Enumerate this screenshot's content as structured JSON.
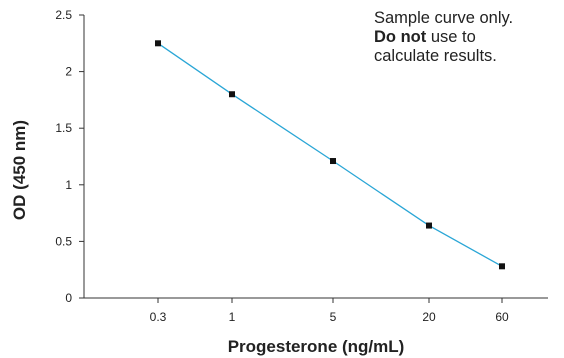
{
  "chart_data": {
    "type": "line",
    "title": "",
    "xlabel": "Progesterone (ng/mL)",
    "ylabel": "OD (450 nm)",
    "x_tick_labels": [
      "0.3",
      "1",
      "5",
      "20",
      "60"
    ],
    "y_tick_labels": [
      "0",
      "0.5",
      "1",
      "1.5",
      "2",
      "2.5"
    ],
    "y_ticks": [
      0,
      0.5,
      1,
      1.5,
      2,
      2.5
    ],
    "ylim": [
      0,
      2.5
    ],
    "series": [
      {
        "points": [
          {
            "x": "0.3",
            "y": 2.25
          },
          {
            "x": "1",
            "y": 1.8
          },
          {
            "x": "5",
            "y": 1.21
          },
          {
            "x": "20",
            "y": 0.64
          },
          {
            "x": "60",
            "y": 0.28
          }
        ],
        "color": "#2aa6d6",
        "marker_color": "#111111"
      }
    ],
    "grid": false,
    "legend": "none"
  },
  "annotation": {
    "line1": "Sample curve only.",
    "bold": "Do not",
    "line2_rest": " use to",
    "line3": "calculate results."
  }
}
